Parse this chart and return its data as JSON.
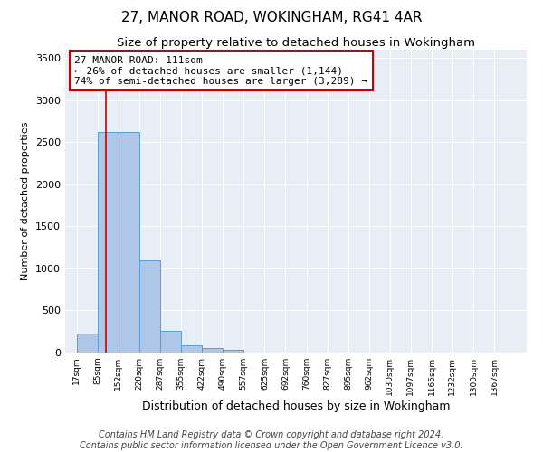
{
  "title": "27, MANOR ROAD, WOKINGHAM, RG41 4AR",
  "subtitle": "Size of property relative to detached houses in Wokingham",
  "xlabel": "Distribution of detached houses by size in Wokingham",
  "ylabel": "Number of detached properties",
  "bin_labels": [
    "17sqm",
    "85sqm",
    "152sqm",
    "220sqm",
    "287sqm",
    "355sqm",
    "422sqm",
    "490sqm",
    "557sqm",
    "625sqm",
    "692sqm",
    "760sqm",
    "827sqm",
    "895sqm",
    "962sqm",
    "1030sqm",
    "1097sqm",
    "1165sqm",
    "1232sqm",
    "1300sqm",
    "1367sqm"
  ],
  "bin_edges": [
    17,
    85,
    152,
    220,
    287,
    355,
    422,
    490,
    557,
    625,
    692,
    760,
    827,
    895,
    962,
    1030,
    1097,
    1165,
    1232,
    1300,
    1367
  ],
  "bar_heights": [
    230,
    2620,
    2620,
    1100,
    255,
    85,
    50,
    35,
    0,
    0,
    0,
    0,
    0,
    0,
    0,
    0,
    0,
    0,
    0,
    0
  ],
  "bar_color": "#aec6e8",
  "bar_edge_color": "#5a9fd4",
  "property_line_x": 111,
  "property_line_color": "#cc0000",
  "annotation_line1": "27 MANOR ROAD: 111sqm",
  "annotation_line2": "← 26% of detached houses are smaller (1,144)",
  "annotation_line3": "74% of semi-detached houses are larger (3,289) →",
  "annotation_box_color": "#cc0000",
  "ylim": [
    0,
    3600
  ],
  "yticks": [
    0,
    500,
    1000,
    1500,
    2000,
    2500,
    3000,
    3500
  ],
  "background_color": "#e8eef5",
  "footer_line1": "Contains HM Land Registry data © Crown copyright and database right 2024.",
  "footer_line2": "Contains public sector information licensed under the Open Government Licence v3.0.",
  "title_fontsize": 11,
  "subtitle_fontsize": 9.5,
  "ylabel_fontsize": 8,
  "xlabel_fontsize": 9,
  "annotation_fontsize": 8,
  "footer_fontsize": 7
}
